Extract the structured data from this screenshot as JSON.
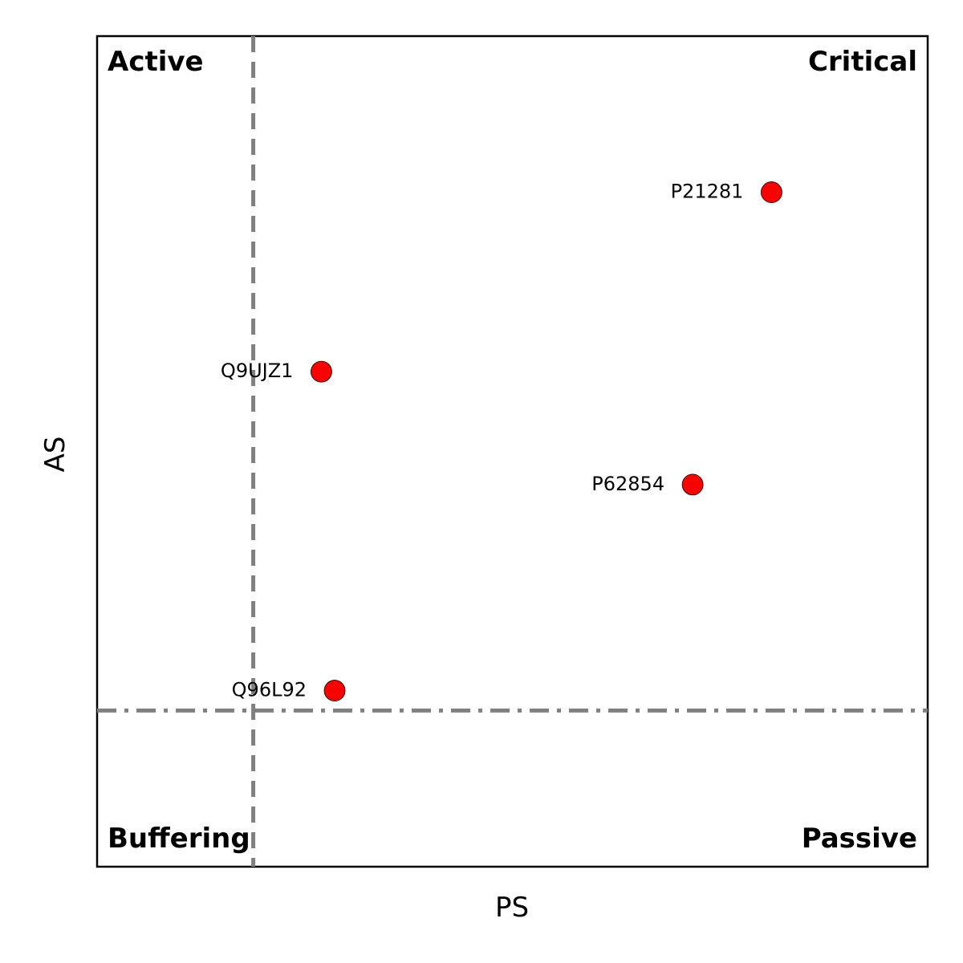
{
  "chart_data": {
    "type": "scatter",
    "title": "",
    "xlabel": "PS",
    "ylabel": "AS",
    "xlim": [
      0,
      1
    ],
    "ylim": [
      0,
      1
    ],
    "grid": false,
    "axis_ticks": false,
    "thresholds": {
      "vertical": {
        "x": 0.188,
        "style": "dashed",
        "color": "#808080"
      },
      "horizontal": {
        "y": 0.188,
        "style": "dash-dot",
        "color": "#808080"
      }
    },
    "quadrant_labels": {
      "top_left": "Active",
      "top_right": "Critical",
      "bottom_left": "Buffering",
      "bottom_right": "Passive"
    },
    "point_color": "#ff0000",
    "points": [
      {
        "label": "P21281",
        "x": 0.812,
        "y": 0.812
      },
      {
        "label": "Q9UJZ1",
        "x": 0.27,
        "y": 0.596
      },
      {
        "label": "P62854",
        "x": 0.717,
        "y": 0.46
      },
      {
        "label": "Q96L92",
        "x": 0.286,
        "y": 0.212
      }
    ]
  }
}
